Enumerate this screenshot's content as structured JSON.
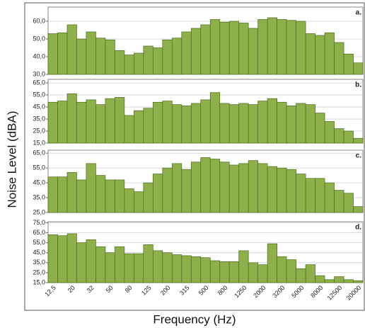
{
  "ylabel": "Noise Level (dBA)",
  "xlabel": "Frequency (Hz)",
  "categories": [
    "12,5",
    null,
    "20",
    null,
    "32",
    null,
    "50",
    null,
    "80",
    null,
    "125",
    null,
    "200",
    null,
    "315",
    null,
    "500",
    null,
    "800",
    null,
    "1250",
    null,
    "2000",
    null,
    "3200",
    null,
    "5000",
    null,
    "8000",
    null,
    "12500",
    null,
    "20000"
  ],
  "chart_data": [
    {
      "type": "bar",
      "title": "a.",
      "color": "#8db04a",
      "grid": true,
      "values": [
        53,
        53.5,
        58,
        50,
        54,
        50.5,
        49.5,
        43.5,
        41,
        42,
        46,
        45,
        49.5,
        50.5,
        54,
        56,
        58,
        61,
        59.5,
        60,
        59,
        56,
        61,
        62,
        61,
        60.5,
        60,
        53,
        52,
        53.5,
        48,
        41.5,
        36.5
      ],
      "ylim": [
        30,
        68
      ],
      "yticks": [
        {
          "value": 30,
          "label": "30,0"
        },
        {
          "value": 40,
          "label": "40,0"
        },
        {
          "value": 50,
          "label": "50,0"
        },
        {
          "value": 60,
          "label": "60,0"
        }
      ]
    },
    {
      "type": "bar",
      "title": "b.",
      "color": "#8db04a",
      "grid": true,
      "values": [
        49,
        50,
        56,
        49,
        51,
        47,
        52,
        53,
        38,
        42,
        44,
        49,
        50,
        47,
        46,
        48,
        51,
        57,
        48,
        47,
        48,
        47,
        50,
        52,
        49,
        46,
        48,
        47,
        40,
        33,
        27,
        25,
        19
      ],
      "ylim": [
        15,
        68
      ],
      "yticks": [
        {
          "value": 15,
          "label": "15,0"
        },
        {
          "value": 25,
          "label": "25,0"
        },
        {
          "value": 35,
          "label": "35,0"
        },
        {
          "value": 45,
          "label": "45,0"
        },
        {
          "value": 55,
          "label": "55,0"
        },
        {
          "value": 65,
          "label": "65,0"
        }
      ]
    },
    {
      "type": "bar",
      "title": "c.",
      "color": "#8db04a",
      "grid": true,
      "values": [
        49,
        49,
        52,
        47,
        58,
        50,
        47,
        47,
        41,
        39,
        45,
        51,
        55,
        58,
        54,
        59,
        62,
        61,
        59,
        57,
        58,
        60,
        58,
        56,
        55,
        54,
        51,
        48,
        48,
        45,
        40,
        38,
        29
      ],
      "ylim": [
        25,
        67
      ],
      "yticks": [
        {
          "value": 25,
          "label": "25,0"
        },
        {
          "value": 35,
          "label": "35,0"
        },
        {
          "value": 45,
          "label": "45,0"
        },
        {
          "value": 55,
          "label": "55,0"
        },
        {
          "value": 65,
          "label": "65,0"
        }
      ]
    },
    {
      "type": "bar",
      "title": "d.",
      "color": "#8db04a",
      "grid": true,
      "values": [
        63,
        62,
        64,
        55,
        58,
        51,
        45,
        51,
        44,
        44,
        53,
        47,
        45,
        43,
        42,
        41,
        40,
        37,
        36,
        36,
        47,
        35,
        33,
        54,
        41,
        38,
        29,
        33,
        22,
        18,
        21,
        18,
        17
      ],
      "ylim": [
        15,
        76
      ],
      "yticks": [
        {
          "value": 15,
          "label": "15,0"
        },
        {
          "value": 25,
          "label": "25,0"
        },
        {
          "value": 35,
          "label": "35,0"
        },
        {
          "value": 45,
          "label": "45,0"
        },
        {
          "value": 55,
          "label": "55,0"
        },
        {
          "value": 65,
          "label": "65,0"
        },
        {
          "value": 75,
          "label": "75,0"
        }
      ]
    }
  ]
}
